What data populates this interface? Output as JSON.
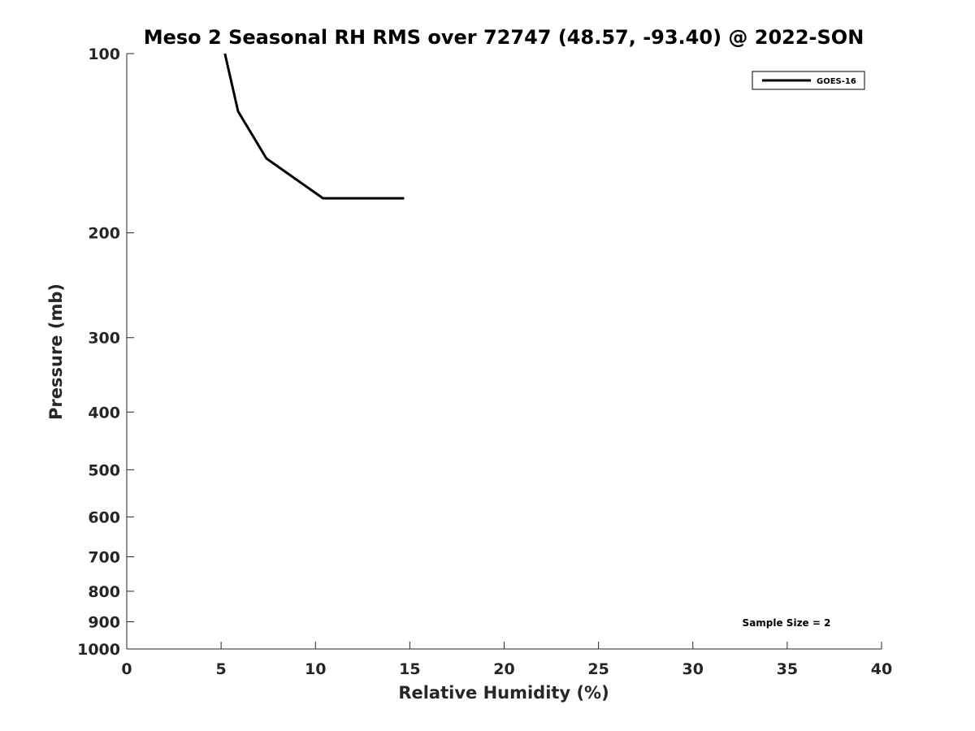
{
  "chart_data": {
    "type": "line",
    "title": "Meso 2 Seasonal RH RMS over 72747 (48.57, -93.40) @ 2022-SON",
    "xlabel": "Relative Humidity (%)",
    "ylabel": "Pressure (mb)",
    "xlim": [
      0,
      40
    ],
    "ylim": [
      100,
      1000
    ],
    "yscale": "log",
    "y_reversed": true,
    "grid": false,
    "x_ticks": [
      0,
      5,
      10,
      15,
      20,
      25,
      30,
      35,
      40
    ],
    "x_tick_labels": [
      "0",
      "5",
      "10",
      "15",
      "20",
      "25",
      "30",
      "35",
      "40"
    ],
    "y_ticks": [
      100,
      200,
      300,
      400,
      500,
      600,
      700,
      800,
      900,
      1000
    ],
    "y_tick_labels": [
      "100",
      "200",
      "300",
      "400",
      "500",
      "600",
      "700",
      "800",
      "900",
      "1000"
    ],
    "legend": {
      "entries": [
        "GOES-16"
      ],
      "location": "top-right"
    },
    "annotation": "Sample Size = 2",
    "series": [
      {
        "name": "GOES-16",
        "color": "#000000",
        "points": [
          {
            "x": 5.2,
            "y": 100
          },
          {
            "x": 5.9,
            "y": 125
          },
          {
            "x": 7.4,
            "y": 150
          },
          {
            "x": 10.4,
            "y": 175
          },
          {
            "x": 14.7,
            "y": 175
          },
          {
            "x": 14.7,
            "y": 175
          }
        ]
      }
    ]
  }
}
